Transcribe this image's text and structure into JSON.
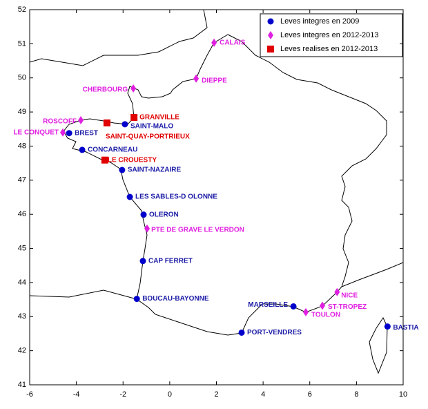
{
  "chart_data": {
    "type": "scatter",
    "xlim": [
      -6,
      10
    ],
    "ylim": [
      41,
      52
    ],
    "xticks": [
      -6,
      -4,
      -2,
      0,
      2,
      4,
      6,
      8,
      10
    ],
    "yticks": [
      41,
      42,
      43,
      44,
      45,
      46,
      47,
      48,
      49,
      50,
      51,
      52
    ],
    "legend": "upper right",
    "series": [
      {
        "name": "Leves integres en 2009",
        "color": "#0000cc",
        "label_color": "#1a1aa6",
        "marker": "circle",
        "labels": [
          "BREST",
          "SAINT-MALO",
          "CONCARNEAU",
          "SAINT-NAZAIRE",
          "LES SABLES-D OLONNE",
          "OLERON",
          "CAP FERRET",
          "BOUCAU-BAYONNE",
          "MARSEILLE",
          "PORT-VENDRES",
          "BASTIA"
        ],
        "x": [
          -4.31,
          -1.92,
          -3.75,
          -2.04,
          -1.71,
          -1.12,
          -1.15,
          -1.41,
          5.3,
          3.08,
          9.33
        ],
        "y": [
          48.38,
          48.64,
          47.89,
          47.3,
          46.51,
          45.99,
          44.63,
          43.52,
          43.3,
          42.53,
          42.71
        ]
      },
      {
        "name": "Leves integres en 2012-2013",
        "color": "#e020e0",
        "label_color": "#e020e0",
        "marker": "diamond",
        "labels": [
          "CALAIS",
          "DIEPPE",
          "CHERBOURG",
          "ROSCOFF",
          "LE CONQUET",
          "PTE DE GRAVE LE VERDON",
          "NICE",
          "ST-TROPEZ",
          "TOULON"
        ],
        "x": [
          1.9,
          1.13,
          -1.56,
          -3.81,
          -4.58,
          -0.97,
          7.17,
          6.54,
          5.83
        ],
        "y": [
          51.03,
          49.98,
          49.69,
          48.76,
          48.4,
          45.58,
          43.72,
          43.32,
          43.13
        ]
      },
      {
        "name": "Leves realises en 2012-2013",
        "color": "#e00000",
        "label_color": "#e00000",
        "marker": "square",
        "labels": [
          "GRANVILLE",
          "SAINT-QUAY-PORTRIEUX",
          "LE CROUESTY"
        ],
        "x": [
          -1.53,
          -2.69,
          -2.78
        ],
        "y": [
          48.84,
          48.68,
          47.59
        ]
      }
    ]
  }
}
